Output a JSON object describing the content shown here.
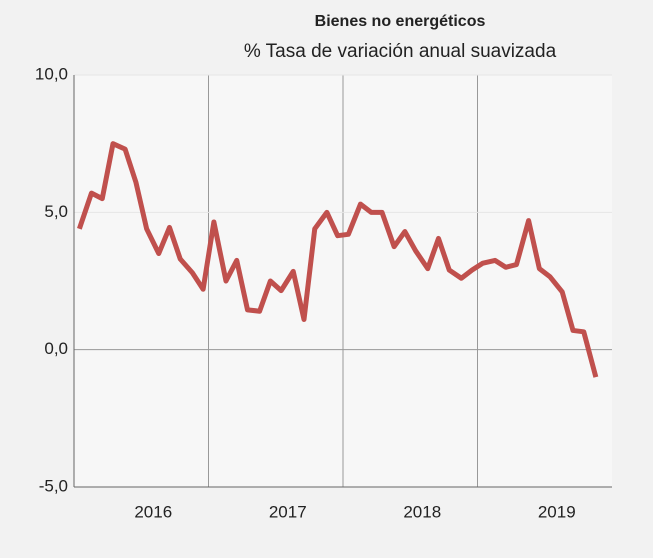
{
  "chart_data": {
    "type": "line",
    "title": "Bienes no  energéticos",
    "subtitle": "% Tasa de variación anual suavizada",
    "x": [
      2016.04,
      2016.13,
      2016.21,
      2016.29,
      2016.38,
      2016.46,
      2016.54,
      2016.63,
      2016.71,
      2016.79,
      2016.88,
      2016.96,
      2017.04,
      2017.13,
      2017.21,
      2017.29,
      2017.38,
      2017.46,
      2017.54,
      2017.63,
      2017.71,
      2017.79,
      2017.88,
      2017.96,
      2018.04,
      2018.13,
      2018.21,
      2018.29,
      2018.38,
      2018.46,
      2018.54,
      2018.63,
      2018.71,
      2018.79,
      2018.88,
      2018.96,
      2019.04,
      2019.13,
      2019.21,
      2019.29,
      2019.38,
      2019.46,
      2019.54,
      2019.63,
      2019.71,
      2019.79,
      2019.88
    ],
    "series": [
      {
        "name": "Bienes no  energéticos",
        "color": "#c0504d",
        "values": [
          4.4,
          5.7,
          5.5,
          7.5,
          7.3,
          6.1,
          4.4,
          3.5,
          4.45,
          3.3,
          2.8,
          2.2,
          4.65,
          2.5,
          3.25,
          1.45,
          1.4,
          2.5,
          2.15,
          2.85,
          1.1,
          4.4,
          5.0,
          4.15,
          4.2,
          5.3,
          5.0,
          5.0,
          3.75,
          4.3,
          3.6,
          2.95,
          4.05,
          2.9,
          2.6,
          2.9,
          3.15,
          3.25,
          3.0,
          3.1,
          4.7,
          2.95,
          2.65,
          2.1,
          0.7,
          0.65,
          -1.0
        ]
      }
    ],
    "xlim": [
      2016,
      2020
    ],
    "xticks": [
      {
        "value": 2016.5,
        "label": "2016"
      },
      {
        "value": 2017.5,
        "label": "2017"
      },
      {
        "value": 2018.5,
        "label": "2018"
      },
      {
        "value": 2019.5,
        "label": "2019"
      }
    ],
    "xgrid": [
      2017,
      2018,
      2019
    ],
    "ylim": [
      -5,
      10
    ],
    "yticks": [
      {
        "value": -5,
        "label": "-5,0"
      },
      {
        "value": 0,
        "label": "0,0"
      },
      {
        "value": 5,
        "label": "5,0"
      },
      {
        "value": 10,
        "label": "10,0"
      }
    ],
    "grid": true
  }
}
